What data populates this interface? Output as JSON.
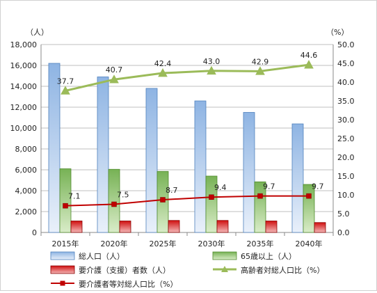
{
  "chart_data": {
    "type": "bar",
    "categories": [
      "2015年",
      "2020年",
      "2025年",
      "2030年",
      "2035年",
      "2040年"
    ],
    "y_left": {
      "unit": "（人）",
      "range": [
        0,
        18000
      ],
      "ticks": [
        "0",
        "2,000",
        "4,000",
        "6,000",
        "8,000",
        "10,000",
        "12,000",
        "14,000",
        "16,000",
        "18,000"
      ]
    },
    "y_right": {
      "unit": "（%）",
      "range": [
        0,
        50
      ],
      "ticks": [
        "0.0",
        "5.0",
        "10.0",
        "15.0",
        "20.0",
        "25.0",
        "30.0",
        "35.0",
        "40.0",
        "45.0",
        "50.0"
      ]
    },
    "bar_series": [
      {
        "name": "総人口（人）",
        "axis": "left",
        "color": "#8eb4e3",
        "values": [
          16200,
          14900,
          13800,
          12600,
          11500,
          10400
        ]
      },
      {
        "name": "65歳以上（人）",
        "axis": "left",
        "color": "#77b255",
        "values": [
          6100,
          6050,
          5850,
          5400,
          4850,
          4600
        ]
      },
      {
        "name": "要介護（支援）者数（人）",
        "axis": "left",
        "color": "#d01010",
        "values": [
          1100,
          1100,
          1150,
          1150,
          1100,
          950
        ]
      }
    ],
    "line_series": [
      {
        "name": "高齢者対総人口比（%）",
        "axis": "right",
        "color": "#9bbb59",
        "marker": "triangle",
        "values": [
          37.7,
          40.7,
          42.4,
          43.0,
          42.9,
          44.6
        ],
        "labels": [
          "37.7",
          "40.7",
          "42.4",
          "43.0",
          "42.9",
          "44.6"
        ]
      },
      {
        "name": "要介護者等対総人口比（%）",
        "axis": "right",
        "color": "#c00000",
        "marker": "square",
        "values": [
          7.1,
          7.5,
          8.7,
          9.4,
          9.7,
          9.7
        ],
        "labels": [
          "7.1",
          "7.5",
          "8.7",
          "9.4",
          "9.7",
          "9.7"
        ]
      }
    ],
    "gridlines": "horizontal",
    "legend_position": "bottom"
  }
}
